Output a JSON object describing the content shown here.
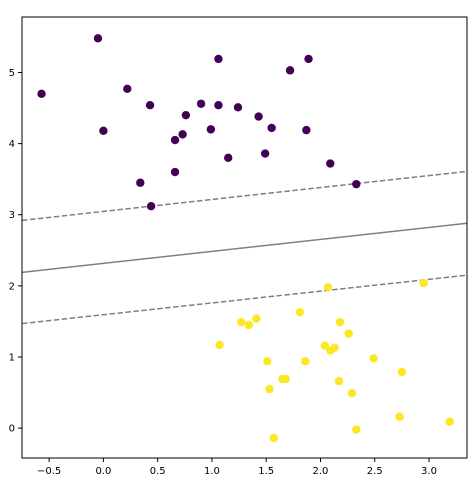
{
  "chart_data": {
    "type": "scatter",
    "title": "",
    "xlabel": "",
    "ylabel": "",
    "xlim": [
      -0.75,
      3.35
    ],
    "ylim": [
      -0.42,
      5.78
    ],
    "grid": false,
    "x_ticks": [
      -0.5,
      0.0,
      0.5,
      1.0,
      1.5,
      2.0,
      2.5,
      3.0
    ],
    "x_tick_labels": [
      "−0.5",
      "0.0",
      "0.5",
      "1.0",
      "1.5",
      "2.0",
      "2.5",
      "3.0"
    ],
    "y_ticks": [
      0,
      1,
      2,
      3,
      4,
      5
    ],
    "y_tick_labels": [
      "0",
      "1",
      "2",
      "3",
      "4",
      "5"
    ],
    "series": [
      {
        "color": "#440154",
        "points": [
          [
            -0.05,
            5.48
          ],
          [
            1.06,
            5.19
          ],
          [
            1.89,
            5.19
          ],
          [
            1.72,
            5.03
          ],
          [
            -0.57,
            4.7
          ],
          [
            0.22,
            4.77
          ],
          [
            0.43,
            4.54
          ],
          [
            0.9,
            4.56
          ],
          [
            1.06,
            4.54
          ],
          [
            1.24,
            4.51
          ],
          [
            0.76,
            4.4
          ],
          [
            1.43,
            4.38
          ],
          [
            0.0,
            4.18
          ],
          [
            0.99,
            4.2
          ],
          [
            1.55,
            4.22
          ],
          [
            1.87,
            4.19
          ],
          [
            0.73,
            4.13
          ],
          [
            0.66,
            4.05
          ],
          [
            1.15,
            3.8
          ],
          [
            1.49,
            3.86
          ],
          [
            2.09,
            3.72
          ],
          [
            0.66,
            3.6
          ],
          [
            0.34,
            3.45
          ],
          [
            2.33,
            3.43
          ],
          [
            0.44,
            3.12
          ]
        ]
      },
      {
        "color": "#fde725",
        "points": [
          [
            2.07,
            1.98
          ],
          [
            2.95,
            2.04
          ],
          [
            1.81,
            1.63
          ],
          [
            1.27,
            1.49
          ],
          [
            1.34,
            1.45
          ],
          [
            1.41,
            1.54
          ],
          [
            2.18,
            1.49
          ],
          [
            2.26,
            1.33
          ],
          [
            1.07,
            1.17
          ],
          [
            2.04,
            1.16
          ],
          [
            2.13,
            1.13
          ],
          [
            2.09,
            1.09
          ],
          [
            1.51,
            0.94
          ],
          [
            1.86,
            0.94
          ],
          [
            2.49,
            0.98
          ],
          [
            2.75,
            0.79
          ],
          [
            1.65,
            0.69
          ],
          [
            1.68,
            0.69
          ],
          [
            2.17,
            0.66
          ],
          [
            1.53,
            0.55
          ],
          [
            2.29,
            0.49
          ],
          [
            2.73,
            0.16
          ],
          [
            3.19,
            0.09
          ],
          [
            2.33,
            -0.02
          ],
          [
            1.57,
            -0.14
          ]
        ]
      }
    ],
    "lines": [
      {
        "style": "solid",
        "color": "#808080",
        "points": [
          [
            -0.75,
            2.19
          ],
          [
            3.35,
            2.88
          ]
        ]
      },
      {
        "style": "dashed",
        "color": "#808080",
        "points": [
          [
            -0.75,
            2.92
          ],
          [
            3.35,
            3.61
          ]
        ]
      },
      {
        "style": "dashed",
        "color": "#808080",
        "points": [
          [
            -0.75,
            1.47
          ],
          [
            3.35,
            2.15
          ]
        ]
      }
    ]
  }
}
